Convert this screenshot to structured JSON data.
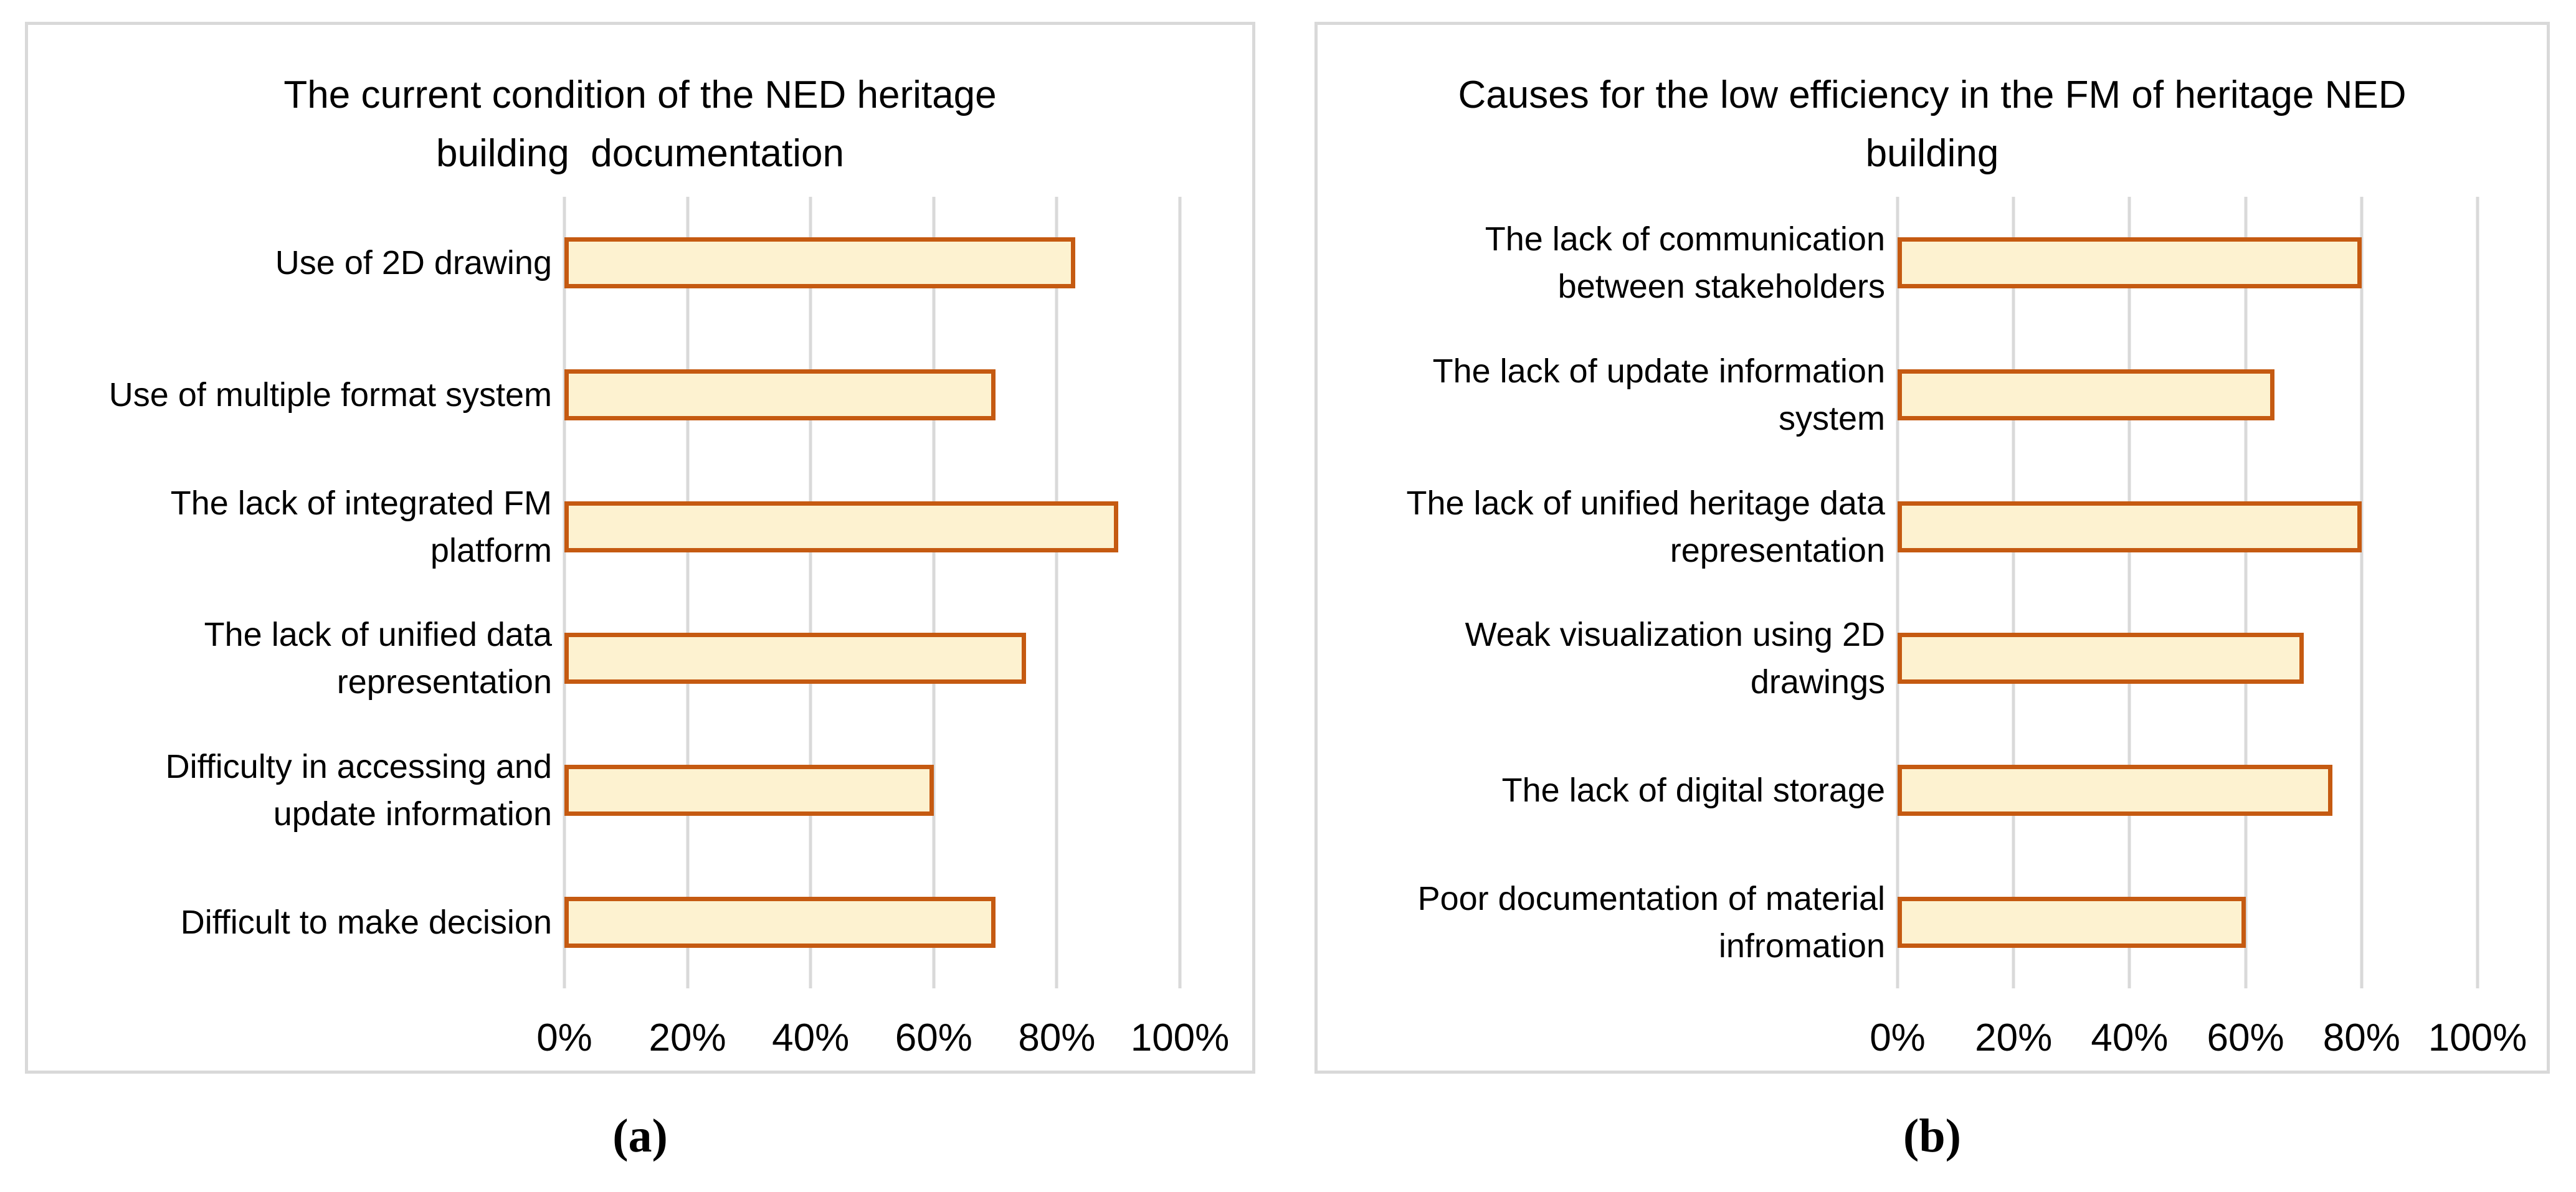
{
  "figure": {
    "background": "#FFFFFF"
  },
  "style": {
    "bar_fill": "#FDF2D0",
    "bar_border": "#C55A11",
    "gridline_color": "#D9D9D9",
    "panel_border_color": "#D9D9D9",
    "text_color": "#000000"
  },
  "captions": {
    "a": "(a)",
    "b": "(b)"
  },
  "chart_data": [
    {
      "type": "bar",
      "orientation": "horizontal",
      "panel": "a",
      "title": "The current condition of the NED heritage building  documentation",
      "title_display": "The current condition of the NED heritage\nbuilding  documentation",
      "categories": [
        "Use of 2D drawing",
        "Use of multiple format system",
        "The lack of integrated FM platform",
        "The lack of unified data representation",
        "Difficulty in accessing and update information",
        "Difficult to make decision"
      ],
      "category_lines": [
        [
          "Use of 2D drawing"
        ],
        [
          "Use of multiple format system"
        ],
        [
          "The lack of integrated FM",
          "platform"
        ],
        [
          "The lack of unified data",
          "representation"
        ],
        [
          "Difficulty in accessing and",
          "update information"
        ],
        [
          "Difficult to make decision"
        ]
      ],
      "values": [
        83,
        70,
        90,
        75,
        60,
        70
      ],
      "unit": "%",
      "xlabel": "",
      "ylabel": "",
      "xlim": [
        0,
        100
      ],
      "xticks": [
        "0%",
        "20%",
        "40%",
        "60%",
        "80%",
        "100%"
      ],
      "grid": true,
      "legend": false
    },
    {
      "type": "bar",
      "orientation": "horizontal",
      "panel": "b",
      "title": "Causes for the low efficiency in the FM of heritage NED building",
      "title_display": "Causes for the low efficiency in the FM of heritage NED\nbuilding",
      "categories": [
        "The lack of communication between stakeholders",
        "The lack of update information system",
        "The lack of unified heritage data representation",
        "Weak visualization using 2D drawings",
        "The lack of digital storage",
        "Poor documentation of material infromation"
      ],
      "category_lines": [
        [
          "The lack of communication",
          "between stakeholders"
        ],
        [
          "The lack of update information",
          "system"
        ],
        [
          "The lack of unified heritage data",
          "representation"
        ],
        [
          "Weak visualization using 2D",
          "drawings"
        ],
        [
          "The lack of digital storage"
        ],
        [
          "Poor documentation of material",
          "infromation"
        ]
      ],
      "values": [
        80,
        65,
        80,
        70,
        75,
        60
      ],
      "unit": "%",
      "xlabel": "",
      "ylabel": "",
      "xlim": [
        0,
        100
      ],
      "xticks": [
        "0%",
        "20%",
        "40%",
        "60%",
        "80%",
        "100%"
      ],
      "grid": true,
      "legend": false
    }
  ]
}
